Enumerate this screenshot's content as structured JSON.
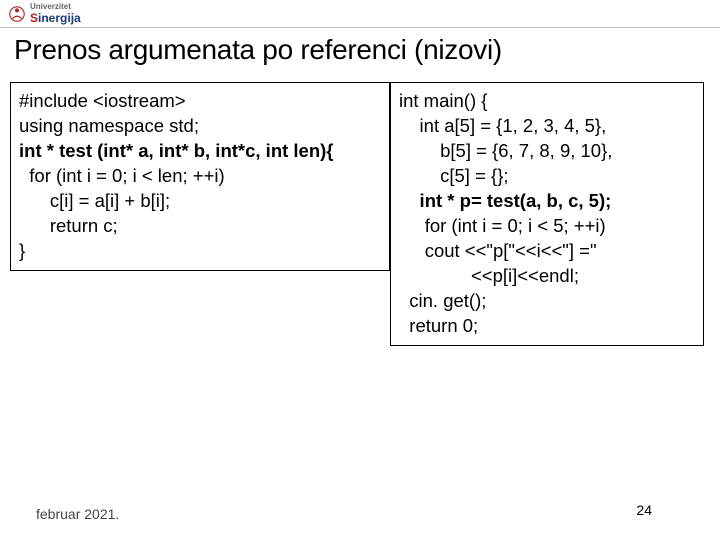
{
  "logo": {
    "text_red": "S",
    "text_blue": "inergija",
    "prefix": "Univerzitet"
  },
  "title": "Prenos argumenata po referenci (nizovi)",
  "code_left": {
    "lines": [
      {
        "t": "#include <iostream>",
        "bold": false,
        "indent": 0
      },
      {
        "t": "using namespace std;",
        "bold": false,
        "indent": 0
      },
      {
        "t": "int * test (int* a, int* b, int*c, int len){",
        "bold": true,
        "indent": 0
      },
      {
        "t": "for (int i = 0; i < len; ++i)",
        "bold": false,
        "indent": 1
      },
      {
        "t": "c[i] = a[i] + b[i];",
        "bold": false,
        "indent": 3
      },
      {
        "t": "return c;",
        "bold": false,
        "indent": 3
      },
      {
        "t": "}",
        "bold": false,
        "indent": 0
      }
    ]
  },
  "code_right": {
    "lines": [
      {
        "t": "int main() {",
        "bold": false,
        "indent": 0
      },
      {
        "t": "int a[5] = {1, 2, 3, 4, 5},",
        "bold": false,
        "indent": 2
      },
      {
        "t": "b[5] = {6, 7, 8, 9, 10},",
        "bold": false,
        "indent": 4
      },
      {
        "t": "c[5] = {};",
        "bold": false,
        "indent": 4
      },
      {
        "t": "int * p= test(a, b, c, 5);",
        "bold": true,
        "indent": 2
      },
      {
        "t": "for (int i = 0; i < 5; ++i)",
        "bold": false,
        "indent": 2.5
      },
      {
        "t": "cout <<\"p[\"<<i<<\"] =\"",
        "bold": false,
        "indent": 2.5
      },
      {
        "t": "<<p[i]<<endl;",
        "bold": false,
        "indent": 7
      },
      {
        "t": "cin. get();",
        "bold": false,
        "indent": 1
      },
      {
        "t": "return 0;",
        "bold": false,
        "indent": 1
      }
    ]
  },
  "footer": {
    "date": "februar 2021.",
    "page": "24"
  },
  "colors": {
    "border": "#000000",
    "background": "#ffffff",
    "title_color": "#000000"
  }
}
